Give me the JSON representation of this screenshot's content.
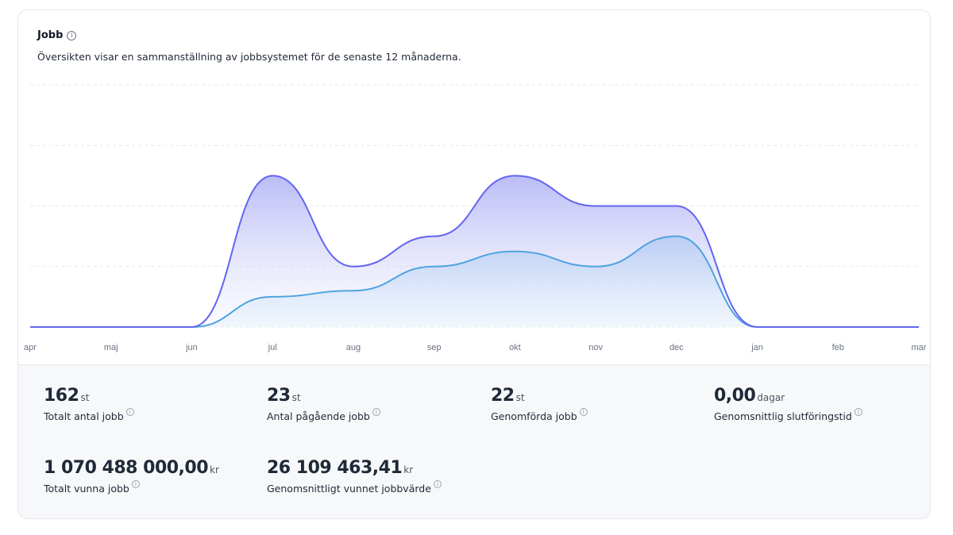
{
  "header": {
    "title": "Jobb",
    "info_icon": "i",
    "subtitle": "Översikten visar en sammanställning av jobbsystemet för de senaste 12 månaderna."
  },
  "chart_data": {
    "type": "area",
    "categories": [
      "apr",
      "maj",
      "jun",
      "jul",
      "aug",
      "sep",
      "okt",
      "nov",
      "dec",
      "jan",
      "feb",
      "mar"
    ],
    "series": [
      {
        "values": [
          0,
          0,
          0,
          5,
          6,
          10,
          12.5,
          10,
          15,
          0,
          0,
          0
        ],
        "color": "#4fa3e0"
      },
      {
        "values": [
          0,
          0,
          0,
          25,
          10,
          15,
          25,
          20,
          20,
          0,
          0,
          0
        ],
        "color": "#6366f1"
      }
    ],
    "ylim": [
      0,
      40
    ],
    "grid": true,
    "legend": "none"
  },
  "stats": [
    {
      "value": "162",
      "unit": "st",
      "label": "Totalt antal jobb",
      "info": "i"
    },
    {
      "value": "23",
      "unit": "st",
      "label": "Antal pågående jobb",
      "info": "i"
    },
    {
      "value": "22",
      "unit": "st",
      "label": "Genomförda jobb",
      "info": "i"
    },
    {
      "value": "0,00",
      "unit": "dagar",
      "label": "Genomsnittlig slutföringstid",
      "info": "i"
    },
    {
      "value": "1 070 488 000,00",
      "unit": "kr",
      "label": "Totalt vunna jobb",
      "info": "i"
    },
    {
      "value": "26 109 463,41",
      "unit": "kr",
      "label": "Genomsnittligt vunnet jobbvärde",
      "info": "i"
    }
  ]
}
